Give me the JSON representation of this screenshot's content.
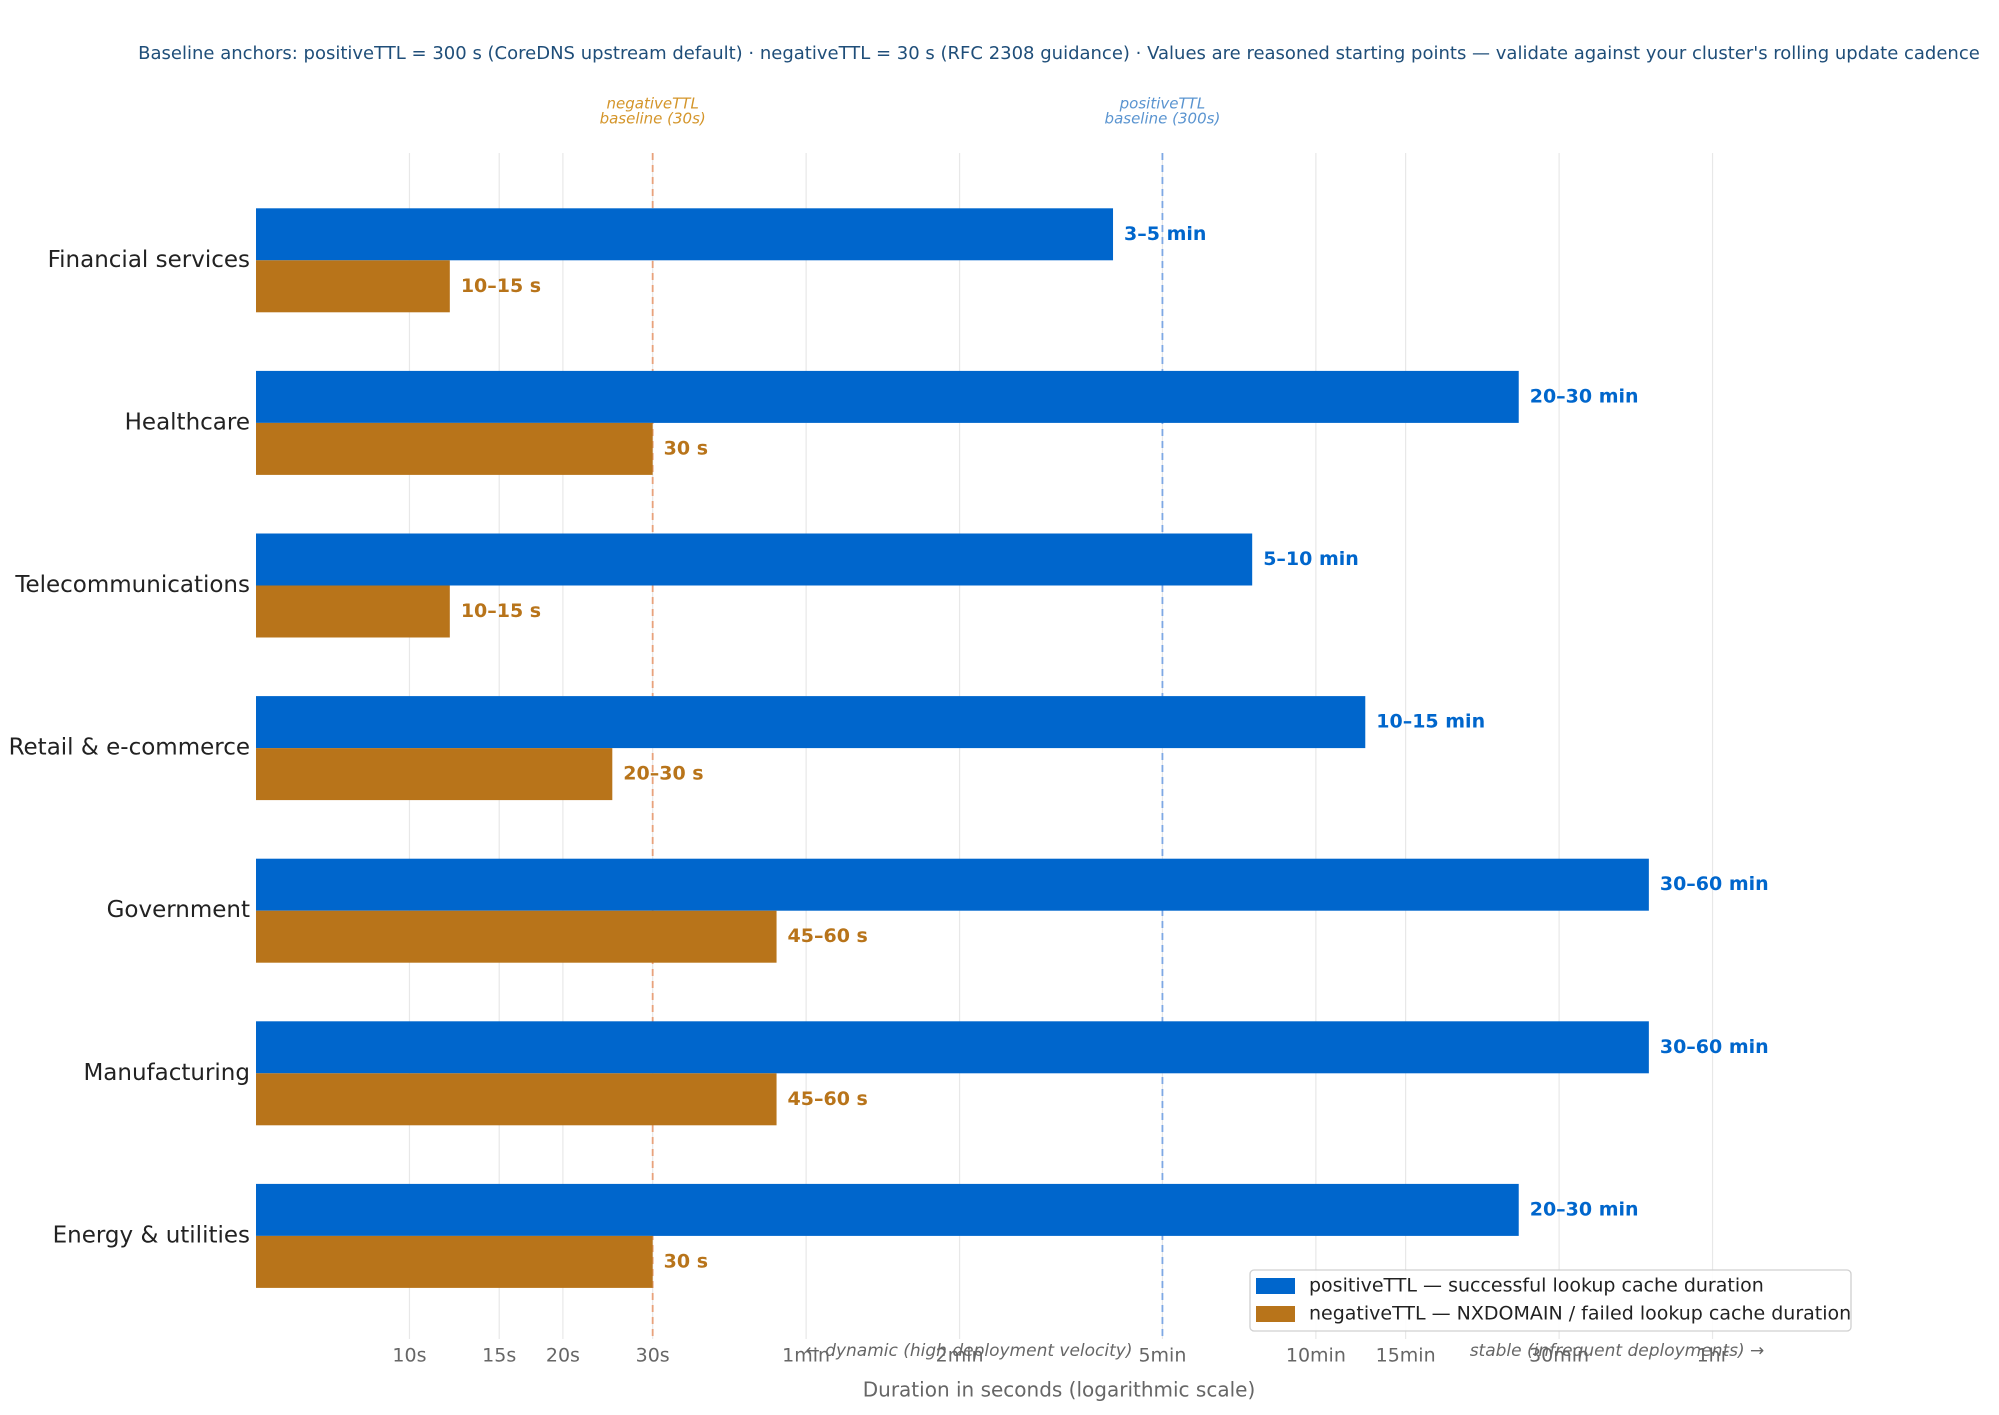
{
  "chart_data": {
    "type": "bar",
    "orientation": "horizontal",
    "subtitle": "Baseline anchors:  positiveTTL = 300 s (CoreDNS upstream default)  ·  negativeTTL = 30 s (RFC 2308 guidance)  ·  Values are reasoned starting points — validate against your cluster's rolling update cadence",
    "xlabel": "Duration in seconds (logarithmic scale)",
    "x_log_scale": true,
    "grid": true,
    "legend": "lower right",
    "categories": [
      "Financial services",
      "Healthcare",
      "Telecommunications",
      "Retail & e-commerce",
      "Government",
      "Manufacturing",
      "Energy & utilities"
    ],
    "series": [
      {
        "name": "positiveTTL — successful lookup cache duration",
        "color": "#0066cc",
        "values": [
          240,
          1500,
          450,
          750,
          2700,
          2700,
          1500
        ],
        "value_labels": [
          "3–5 min",
          "20–30 min",
          "5–10 min",
          "10–15 min",
          "30–60 min",
          "30–60 min",
          "20–30 min"
        ]
      },
      {
        "name": "negativeTTL — NXDOMAIN / failed lookup cache duration",
        "color": "#b8741a",
        "values": [
          12,
          30,
          12,
          25,
          52.5,
          52.5,
          30
        ],
        "value_labels": [
          "10–15 s",
          "30 s",
          "10–15 s",
          "20–30 s",
          "45–60 s",
          "45–60 s",
          "30 s"
        ]
      }
    ],
    "xlim": [
      5,
      7200
    ],
    "xticks": [
      {
        "value": 10,
        "label": "10s"
      },
      {
        "value": 15,
        "label": "15s"
      },
      {
        "value": 20,
        "label": "20s"
      },
      {
        "value": 30,
        "label": "30s"
      },
      {
        "value": 60,
        "label": "1min"
      },
      {
        "value": 120,
        "label": "2min"
      },
      {
        "value": 300,
        "label": "5min"
      },
      {
        "value": 600,
        "label": "10min"
      },
      {
        "value": 900,
        "label": "15min"
      },
      {
        "value": 1800,
        "label": "30min"
      },
      {
        "value": 3600,
        "label": "1hr"
      }
    ],
    "reference_lines": [
      {
        "value": 30,
        "label_lines": [
          "negativeTTL",
          "baseline (30s)"
        ],
        "color": "#e8a27c",
        "label_color": "#d4952a"
      },
      {
        "value": 300,
        "label_lines": [
          "positiveTTL",
          "baseline (300s)"
        ],
        "color": "#7ea8e4",
        "label_color": "#5a94d0"
      }
    ],
    "annotations": [
      "← dynamic (high deployment velocity)",
      "stable (infrequent deployments) →"
    ]
  }
}
